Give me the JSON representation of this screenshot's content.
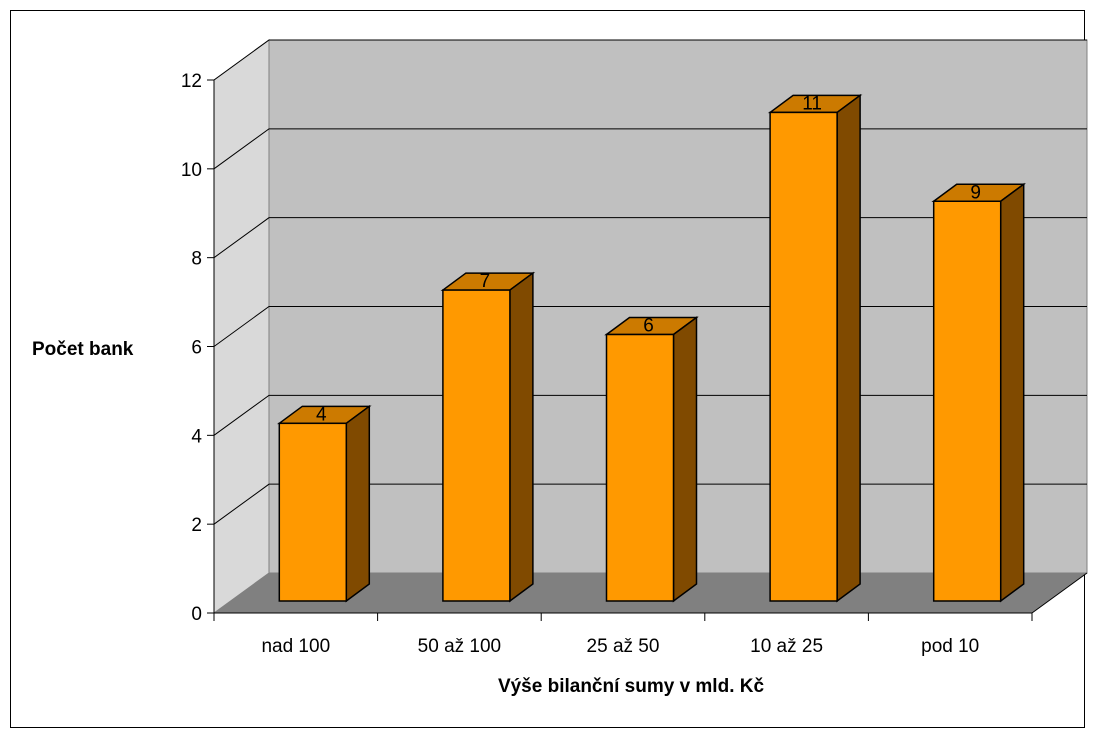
{
  "chart_data": {
    "type": "bar",
    "style": "3d-column",
    "title": "",
    "xlabel": "Výše bilanční sumy v mld. Kč",
    "ylabel": "Počet bank",
    "categories": [
      "nad 100",
      "50 až 100",
      "25 až 50",
      "10 až 25",
      "pod 10"
    ],
    "values": [
      4,
      7,
      6,
      11,
      9
    ],
    "data_labels": [
      "4",
      "7",
      "6",
      "11",
      "9"
    ],
    "yticks": [
      "0",
      "2",
      "4",
      "6",
      "8",
      "10",
      "12"
    ],
    "ylim": [
      0,
      12
    ],
    "grid": true,
    "legend": "none",
    "colors": {
      "bar_front": "#ff9900",
      "bar_top": "#cc7a00",
      "bar_side": "#804a00",
      "back_wall": "#c0c0c0",
      "side_wall": "#d9d9d9",
      "floor": "#808080",
      "gridline": "#000000"
    }
  }
}
